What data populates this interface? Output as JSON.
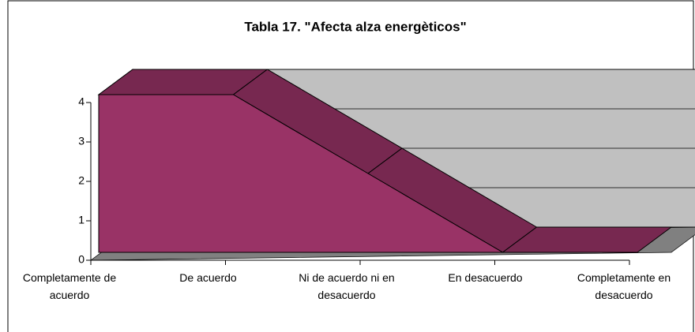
{
  "chart_data": {
    "type": "area3d",
    "title": "Tabla 17. \"Afecta alza energèticos\"",
    "categories": [
      [
        "Completamente de",
        "acuerdo"
      ],
      [
        "De acuerdo"
      ],
      [
        "Ni de acuerdo ni en",
        "desacuerdo"
      ],
      [
        "En desacuerdo"
      ],
      [
        "Completamente en",
        "desacuerdo"
      ]
    ],
    "values": [
      4,
      4,
      2,
      0,
      0
    ],
    "color": "#993366",
    "ylim": [
      0,
      4
    ],
    "yticks": [
      0,
      1,
      2,
      3,
      4
    ],
    "grid": true
  }
}
